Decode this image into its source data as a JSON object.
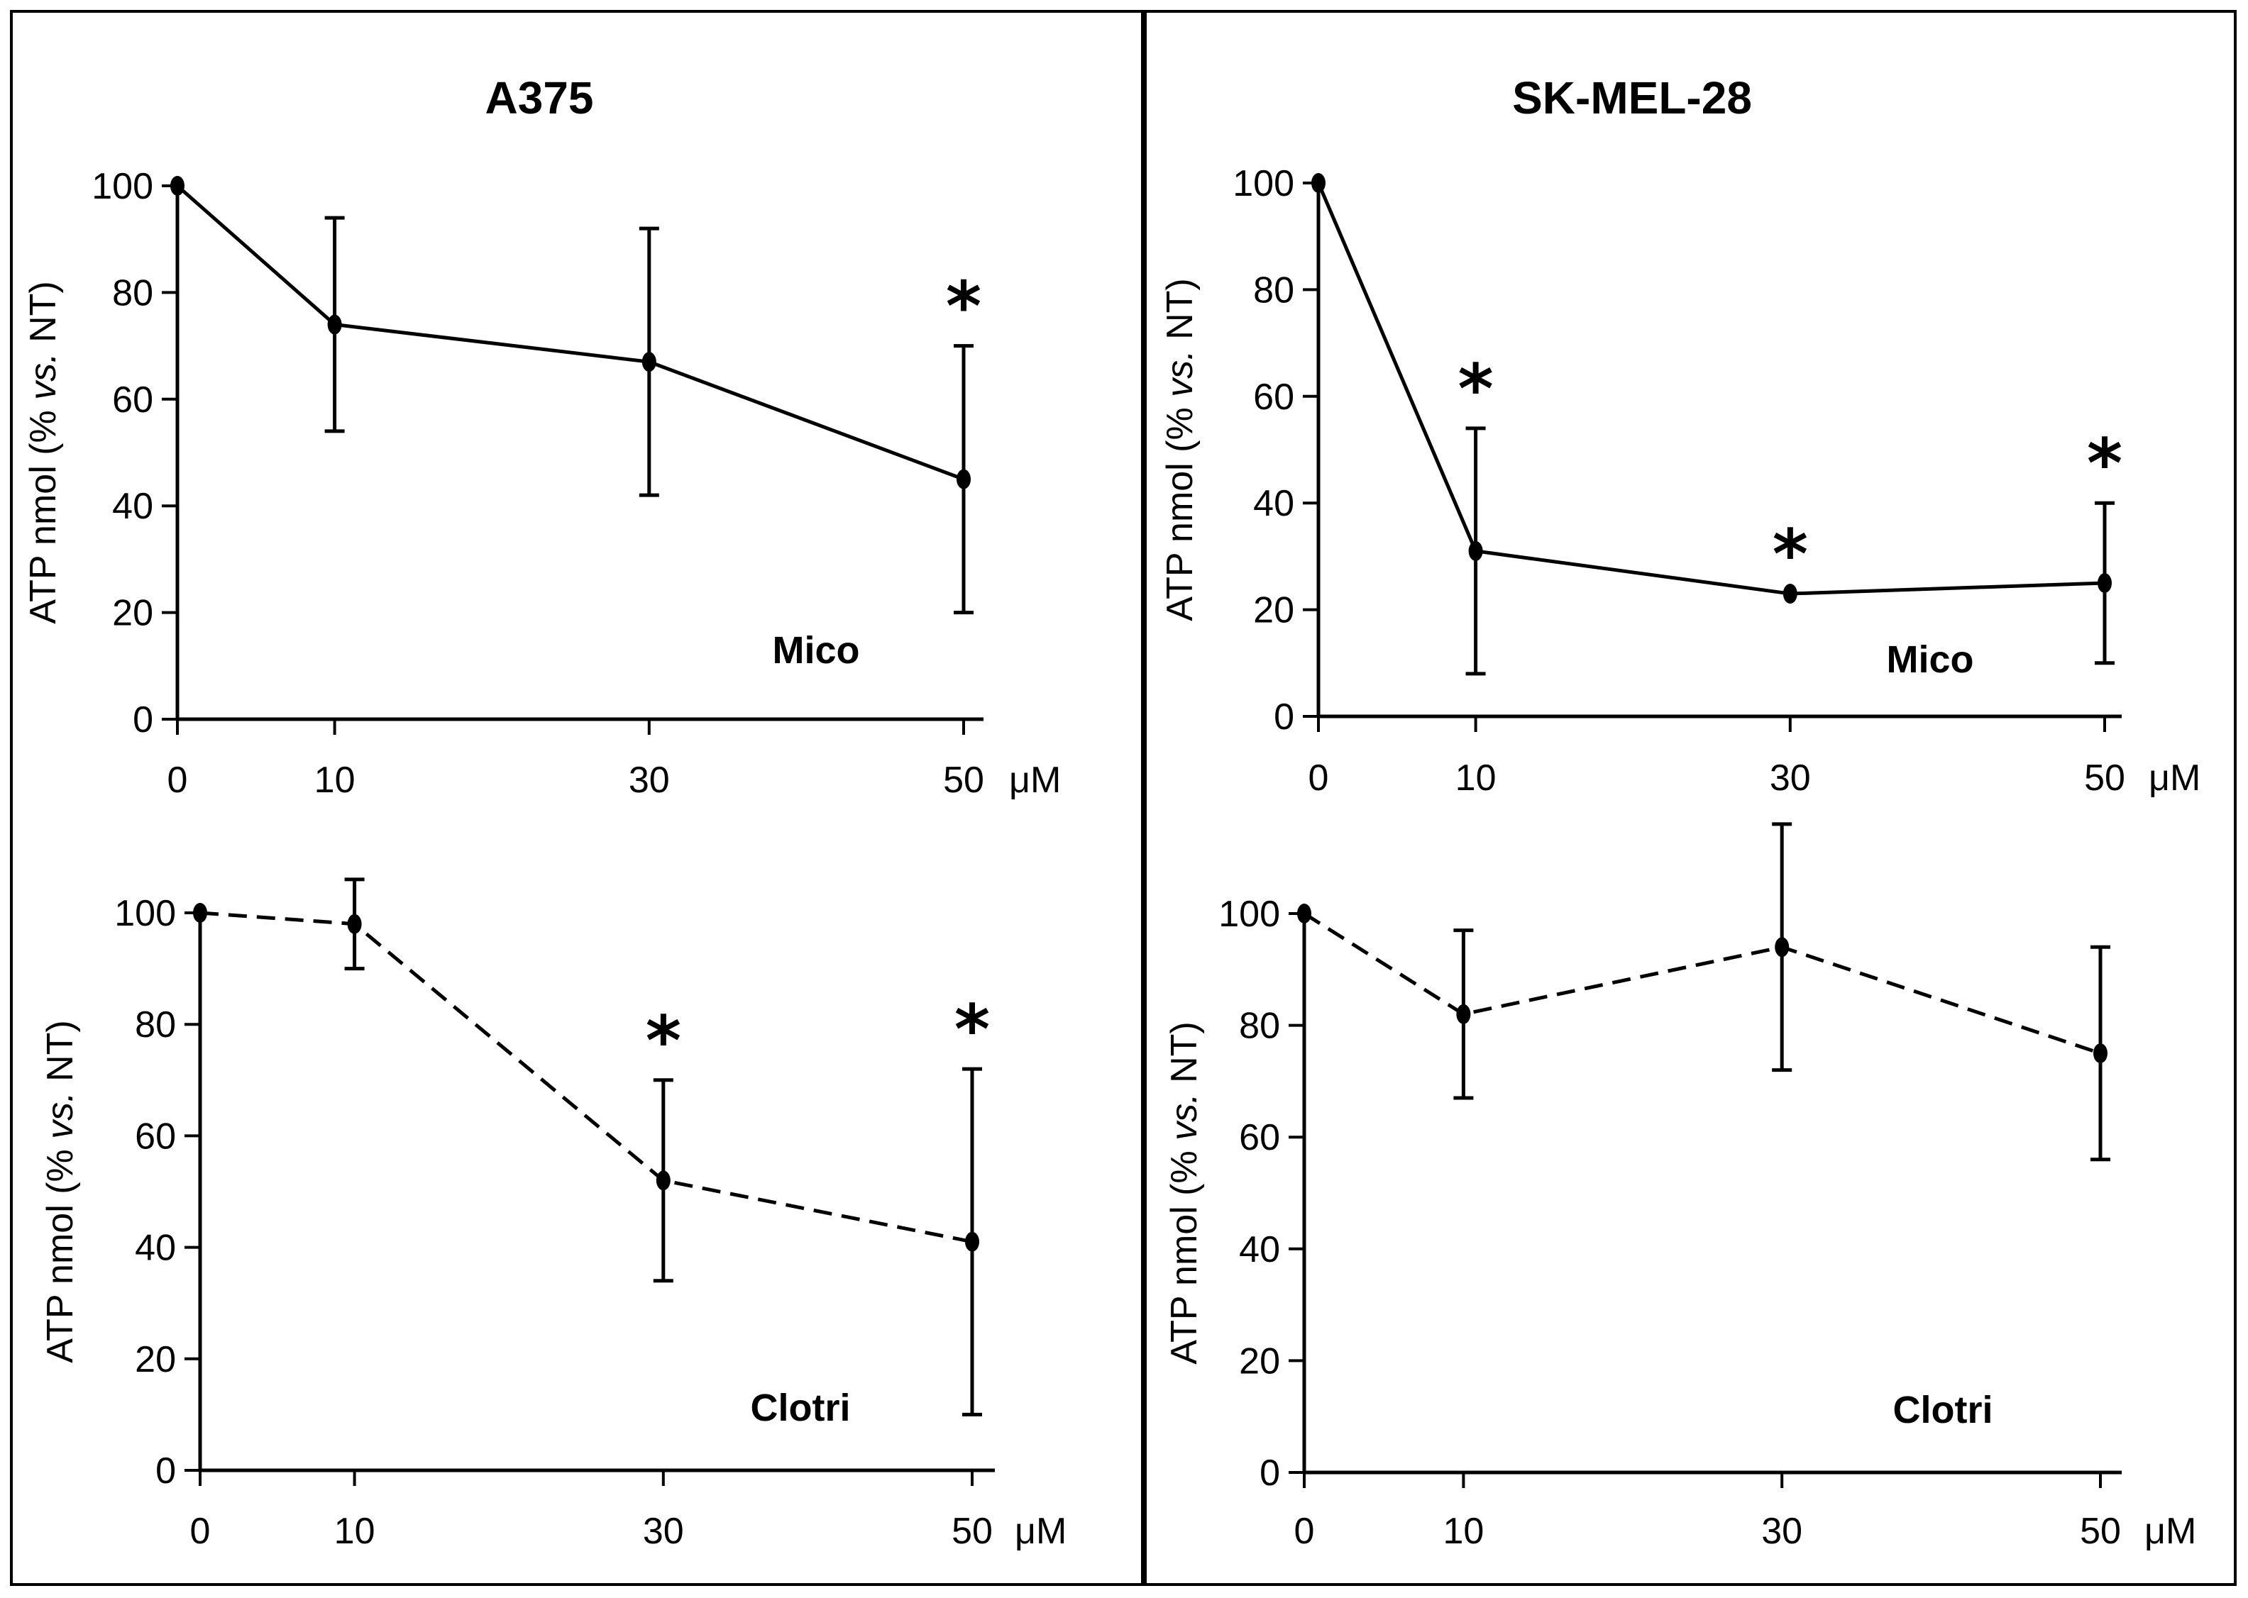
{
  "panels": [
    {
      "title": "A375"
    },
    {
      "title": "SK-MEL-28"
    }
  ],
  "chart_data": [
    {
      "type": "line",
      "cell_line": "A375",
      "drug": "Mico",
      "line_style": "solid",
      "x": [
        0,
        10,
        30,
        50
      ],
      "x_tick_labels": [
        "0",
        "10",
        "30",
        "50"
      ],
      "x_unit": "μM",
      "y": [
        100,
        74,
        67,
        45
      ],
      "y_err": [
        0,
        20,
        25,
        25
      ],
      "significant": [
        false,
        false,
        false,
        true
      ],
      "ylabel": "ATP nmol (% vs. NT)",
      "ylim": [
        0,
        100
      ],
      "y_ticks": [
        "0",
        "20",
        "40",
        "60",
        "80",
        "100"
      ],
      "significance_marker": "*"
    },
    {
      "type": "line",
      "cell_line": "A375",
      "drug": "Clotri",
      "line_style": "dashed",
      "x": [
        0,
        10,
        30,
        50
      ],
      "x_tick_labels": [
        "0",
        "10",
        "30",
        "50"
      ],
      "x_unit": "μM",
      "y": [
        100,
        98,
        52,
        41
      ],
      "y_err": [
        0,
        8,
        18,
        31
      ],
      "significant": [
        false,
        false,
        true,
        true
      ],
      "ylabel": "ATP nmol (% vs. NT)",
      "ylim": [
        0,
        100
      ],
      "y_ticks": [
        "0",
        "20",
        "40",
        "60",
        "80",
        "100"
      ],
      "significance_marker": "*"
    },
    {
      "type": "line",
      "cell_line": "SK-MEL-28",
      "drug": "Mico",
      "line_style": "solid",
      "x": [
        0,
        10,
        30,
        50
      ],
      "x_tick_labels": [
        "0",
        "10",
        "30",
        "50"
      ],
      "x_unit": "μM",
      "y": [
        100,
        31,
        23,
        25
      ],
      "y_err": [
        0,
        23,
        0,
        15
      ],
      "significant": [
        false,
        true,
        true,
        true
      ],
      "ylabel": "ATP nmol (% vs. NT)",
      "ylim": [
        0,
        100
      ],
      "y_ticks": [
        "0",
        "20",
        "40",
        "60",
        "80",
        "100"
      ],
      "significance_marker": "*"
    },
    {
      "type": "line",
      "cell_line": "SK-MEL-28",
      "drug": "Clotri",
      "line_style": "dashed",
      "x": [
        0,
        10,
        30,
        50
      ],
      "x_tick_labels": [
        "0",
        "10",
        "30",
        "50"
      ],
      "x_unit": "μM",
      "y": [
        100,
        82,
        94,
        75
      ],
      "y_err": [
        0,
        15,
        22,
        19
      ],
      "significant": [
        false,
        false,
        false,
        false
      ],
      "ylabel": "ATP nmol (% vs. NT)",
      "ylim": [
        0,
        100
      ],
      "y_ticks": [
        "0",
        "20",
        "40",
        "60",
        "80",
        "100"
      ],
      "significance_marker": "*"
    }
  ]
}
